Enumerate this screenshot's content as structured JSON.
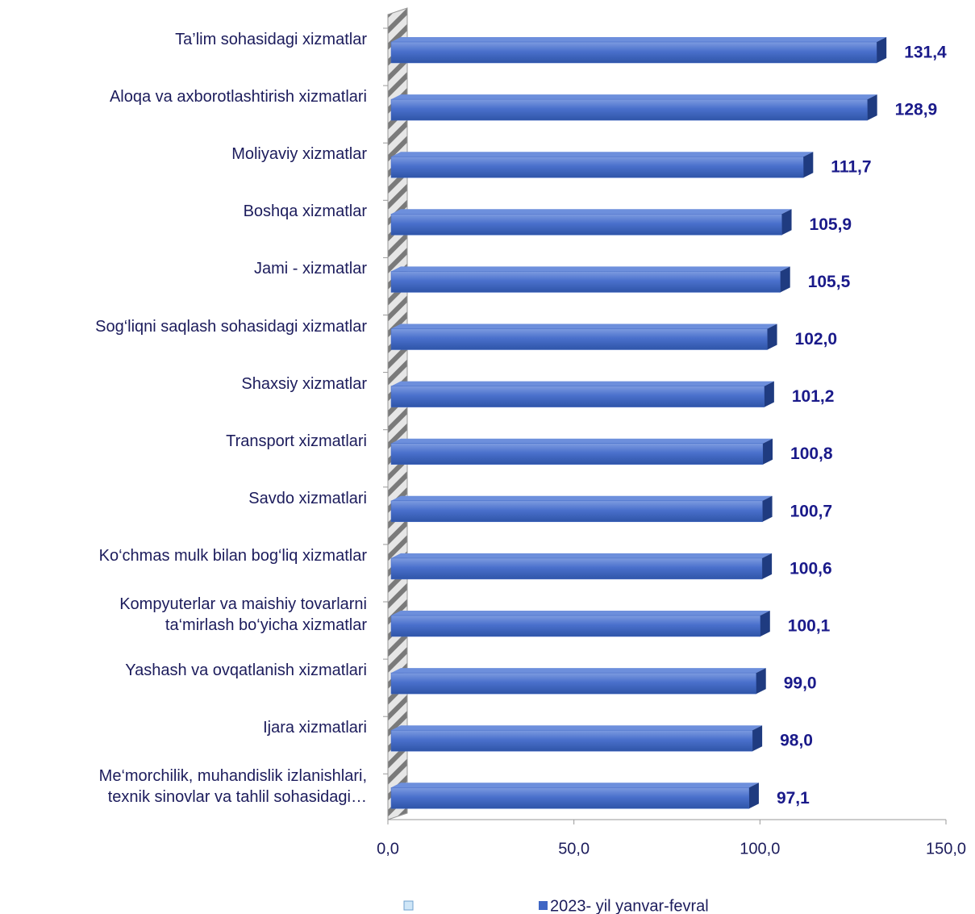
{
  "chart_data": {
    "type": "bar",
    "orientation": "horizontal",
    "categories": [
      "Ta’lim sohasidagi xizmatlar",
      "Aloqa va axborotlashtirish xizmatlari",
      "Moliyaviy  xizmatlar",
      "Boshqa xizmatlar",
      "Jami - xizmatlar",
      "Sog‘liqni saqlash sohasidagi xizmatlar",
      "Shaxsiy xizmatlar",
      "Transport xizmatlari",
      "Savdo xizmatlari",
      "Ko‘chmas mulk bilan bog‘liq xizmatlar",
      "Kompyuterlar va maishiy tovarlarni\nta‘mirlash bo‘yicha xizmatlar",
      "Yashash va ovqatlanish xizmatlari",
      "Ijara xizmatlari",
      "Me‘morchilik, muhandislik izlanishlari,\ntexnik sinovlar va tahlil sohasidagi…"
    ],
    "series": [
      {
        "name": "2023- yil yanvar-fevral",
        "color": "#3f66c4",
        "values": [
          131.4,
          128.9,
          111.7,
          105.9,
          105.5,
          102.0,
          101.2,
          100.8,
          100.7,
          100.6,
          100.1,
          99.0,
          98.0,
          97.1
        ],
        "value_labels": [
          "131,4",
          "128,9",
          "111,7",
          "105,9",
          "105,5",
          "102,0",
          "101,2",
          "100,8",
          "100,7",
          "100,6",
          "100,1",
          "99,0",
          "98,0",
          "97,1"
        ]
      }
    ],
    "xlim": [
      0,
      150
    ],
    "xticks": [
      {
        "value": 0,
        "label": "0,0"
      },
      {
        "value": 50,
        "label": "50,0"
      },
      {
        "value": 100,
        "label": "100,0"
      },
      {
        "value": 150,
        "label": "150,0"
      }
    ]
  }
}
